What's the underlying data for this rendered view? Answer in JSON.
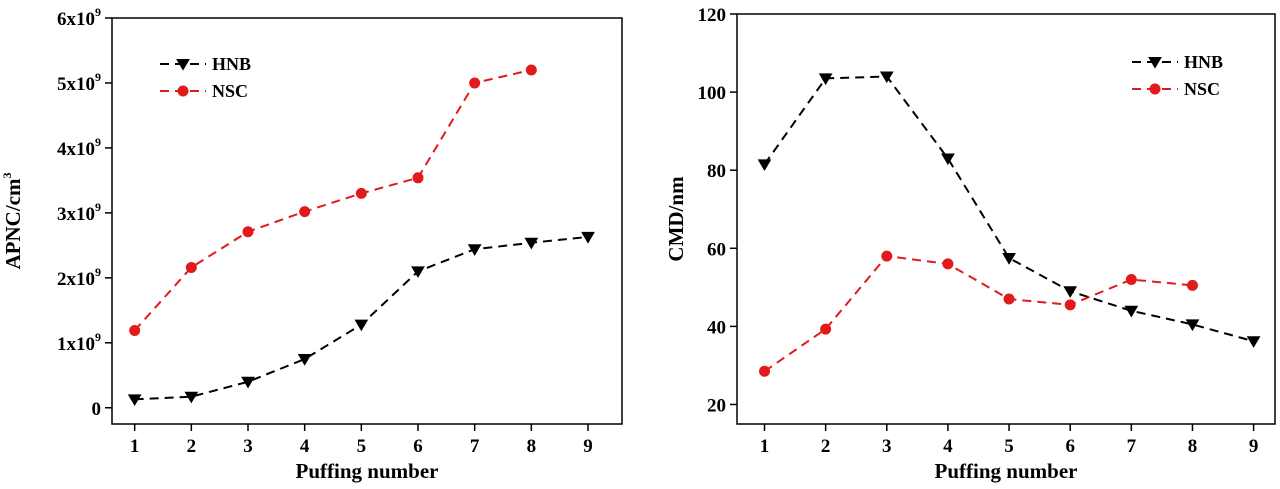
{
  "colors": {
    "hnb": "#000000",
    "nsc": "#e31a1c",
    "axis": "#000000"
  },
  "chart_data": [
    {
      "type": "line",
      "title": "",
      "xlabel": "Puffing number",
      "ylabel_base": "APNC/cm",
      "ylabel_sup": "3",
      "x": [
        1,
        2,
        3,
        4,
        5,
        6,
        7,
        8,
        9
      ],
      "xlim": [
        0.6,
        9.6
      ],
      "ylim": [
        -0.25,
        6
      ],
      "yticks": [
        0,
        1,
        2,
        3,
        4,
        5,
        6
      ],
      "ytick_labels": [
        {
          "base": "0",
          "sup": ""
        },
        {
          "base": "1x10",
          "sup": "9"
        },
        {
          "base": "2x10",
          "sup": "9"
        },
        {
          "base": "3x10",
          "sup": "9"
        },
        {
          "base": "4x10",
          "sup": "9"
        },
        {
          "base": "5x10",
          "sup": "9"
        },
        {
          "base": "6x10",
          "sup": "9"
        }
      ],
      "y_unit_note": "values in units of 10^9",
      "legend_position": "top-left",
      "series": [
        {
          "name": "HNB",
          "key": "hnb",
          "marker": "triangle-down",
          "line": "dashed",
          "x": [
            1,
            2,
            3,
            4,
            5,
            6,
            7,
            8,
            9
          ],
          "values": [
            0.13,
            0.17,
            0.4,
            0.75,
            1.28,
            2.1,
            2.44,
            2.54,
            2.63
          ]
        },
        {
          "name": "NSC",
          "key": "nsc",
          "marker": "circle",
          "line": "dashed",
          "x": [
            1,
            2,
            3,
            4,
            5,
            6,
            7,
            8
          ],
          "values": [
            1.19,
            2.16,
            2.71,
            3.02,
            3.3,
            3.54,
            5.0,
            5.2
          ]
        }
      ]
    },
    {
      "type": "line",
      "title": "",
      "xlabel": "Puffing number",
      "ylabel_base": "CMD/nm",
      "ylabel_sup": "",
      "x": [
        1,
        2,
        3,
        4,
        5,
        6,
        7,
        8,
        9
      ],
      "xlim": [
        0.55,
        9.35
      ],
      "ylim": [
        15,
        120
      ],
      "yticks": [
        20,
        40,
        60,
        80,
        100,
        120
      ],
      "ytick_labels": [
        {
          "base": "20",
          "sup": ""
        },
        {
          "base": "40",
          "sup": ""
        },
        {
          "base": "60",
          "sup": ""
        },
        {
          "base": "80",
          "sup": ""
        },
        {
          "base": "100",
          "sup": ""
        },
        {
          "base": "120",
          "sup": ""
        }
      ],
      "legend_position": "top-right",
      "series": [
        {
          "name": "HNB",
          "key": "hnb",
          "marker": "triangle-down",
          "line": "dashed",
          "x": [
            1,
            2,
            3,
            4,
            5,
            6,
            7,
            8,
            9
          ],
          "values": [
            81.5,
            103.5,
            104,
            83,
            57.5,
            49,
            44,
            40.5,
            36.2
          ]
        },
        {
          "name": "NSC",
          "key": "nsc",
          "marker": "circle",
          "line": "dashed",
          "x": [
            1,
            2,
            3,
            4,
            5,
            6,
            7,
            8
          ],
          "values": [
            28.5,
            39.3,
            58,
            56,
            47,
            45.5,
            52,
            50.5
          ]
        }
      ]
    }
  ]
}
